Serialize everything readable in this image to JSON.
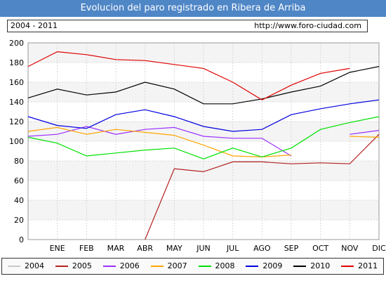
{
  "header": {
    "title": "Evolucion del paro registrado en Ribera de Arriba",
    "period": "2004 - 2011",
    "url": "http://www.foro-ciudad.com"
  },
  "chart_data": {
    "type": "line",
    "categories": [
      "",
      "ENE",
      "FEB",
      "MAR",
      "ABR",
      "MAY",
      "JUN",
      "JUL",
      "AGO",
      "SEP",
      "OCT",
      "NOV",
      "DIC"
    ],
    "y_ticks": [
      0,
      20,
      40,
      60,
      80,
      100,
      120,
      140,
      160,
      180,
      200
    ],
    "ylim": [
      0,
      200
    ],
    "grid": true,
    "legend_position": "bottom",
    "series": [
      {
        "name": "2004",
        "color": "#c8c8c8",
        "values": [
          null,
          null,
          null,
          null,
          null,
          null,
          null,
          null,
          null,
          null,
          null,
          null,
          null
        ]
      },
      {
        "name": "2005",
        "color": "#b22222",
        "values": [
          null,
          null,
          null,
          null,
          0,
          72,
          69,
          79,
          79,
          77,
          78,
          77,
          107
        ]
      },
      {
        "name": "2006",
        "color": "#9b30ff",
        "values": [
          105,
          107,
          115,
          107,
          112,
          114,
          105,
          103,
          103,
          85,
          null,
          107,
          111
        ]
      },
      {
        "name": "2007",
        "color": "#ffa500",
        "values": [
          110,
          114,
          107,
          112,
          109,
          106,
          96,
          85,
          84,
          86,
          null,
          105,
          104
        ]
      },
      {
        "name": "2008",
        "color": "#00e000",
        "values": [
          104,
          98,
          85,
          88,
          91,
          93,
          82,
          93,
          84,
          93,
          112,
          119,
          125
        ]
      },
      {
        "name": "2009",
        "color": "#0000e0",
        "values": [
          125,
          116,
          113,
          127,
          132,
          125,
          115,
          110,
          112,
          127,
          133,
          138,
          142
        ]
      },
      {
        "name": "2010",
        "color": "#000000",
        "values": [
          144,
          153,
          147,
          150,
          160,
          153,
          138,
          138,
          143,
          150,
          156,
          170,
          176
        ]
      },
      {
        "name": "2011",
        "color": "#e00000",
        "values": [
          176,
          191,
          188,
          183,
          182,
          178,
          174,
          160,
          142,
          157,
          169,
          174,
          null
        ]
      }
    ]
  }
}
